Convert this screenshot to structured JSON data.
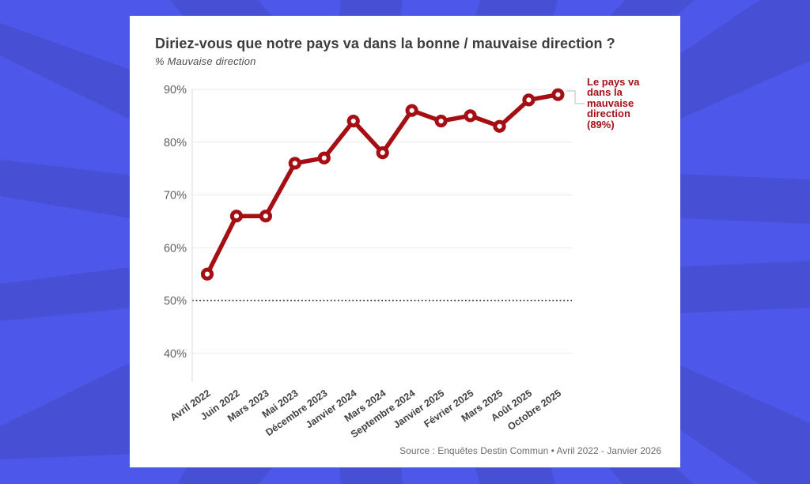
{
  "background": {
    "ray_color_light": "#4d57e9",
    "ray_color_dark": "#4750d4"
  },
  "card": {
    "title": "Diriez-vous que notre pays va dans la bonne / mauvaise direction ?",
    "subtitle": "% Mauvaise direction",
    "source": "Source : Enquêtes Destin Commun • Avril 2022 - Janvier 2026"
  },
  "annotation": {
    "text": "Le pays va dans la mauvaise direction (89%)",
    "lines": [
      "Le pays va",
      "dans la",
      "mauvaise",
      "direction",
      "(89%)"
    ],
    "color": "#a50f14"
  },
  "chart_data": {
    "type": "line",
    "title": "Diriez-vous que notre pays va dans la bonne / mauvaise direction ?",
    "ylabel": "% Mauvaise direction",
    "categories": [
      "Avril 2022",
      "Juin 2022",
      "Mars 2023",
      "Mai 2023",
      "Décembre 2023",
      "Janvier 2024",
      "Mars 2024",
      "Septembre 2024",
      "Janvier 2025",
      "Février 2025",
      "Mars 2025",
      "Août 2025",
      "Octobre 2025"
    ],
    "values": [
      55,
      66,
      66,
      76,
      77,
      84,
      78,
      86,
      84,
      85,
      83,
      88,
      89
    ],
    "yticks": [
      40,
      50,
      60,
      70,
      80,
      90
    ],
    "ytick_suffix": "%",
    "ylim": [
      36,
      93
    ],
    "reference_line": 50,
    "line_color": "#a50f14",
    "grid": true,
    "legend": false
  }
}
